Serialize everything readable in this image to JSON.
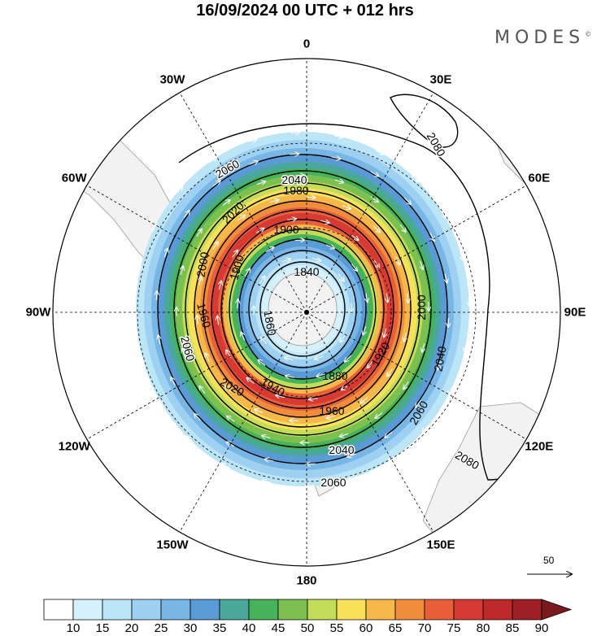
{
  "title": "16/09/2024  00 UTC  + 012 hrs",
  "brand": "MODES",
  "brand_mark": "©",
  "longitude_labels": [
    {
      "text": "0",
      "lon": 0
    },
    {
      "text": "30E",
      "lon": 30
    },
    {
      "text": "60E",
      "lon": 60
    },
    {
      "text": "90E",
      "lon": 90
    },
    {
      "text": "120E",
      "lon": 120
    },
    {
      "text": "150E",
      "lon": 150
    },
    {
      "text": "180",
      "lon": 180
    },
    {
      "text": "150W",
      "lon": -150
    },
    {
      "text": "120W",
      "lon": -120
    },
    {
      "text": "90W",
      "lon": -90
    },
    {
      "text": "60W",
      "lon": -60
    },
    {
      "text": "30W",
      "lon": -30
    }
  ],
  "contour_labels": [
    "2060",
    "2040",
    "1980",
    "1900",
    "2000",
    "2020",
    "1840",
    "1860",
    "1880",
    "1920",
    "1940",
    "1960",
    "2080"
  ],
  "wind_scale_label": "50",
  "colorbar": {
    "ticks": [
      "10",
      "15",
      "20",
      "25",
      "30",
      "35",
      "40",
      "45",
      "50",
      "55",
      "60",
      "65",
      "70",
      "75",
      "80",
      "85",
      "90"
    ],
    "colors": [
      "#ffffff",
      "#d6f1fb",
      "#bde5f8",
      "#9dd0f1",
      "#78b6e5",
      "#5b9bd5",
      "#4aa89a",
      "#46b35a",
      "#7cc04f",
      "#c3dc5a",
      "#f7e15a",
      "#f6b84a",
      "#f08d3c",
      "#e8603a",
      "#d63a33",
      "#bd2a2c",
      "#9e1f26",
      "#7a1a1c"
    ]
  },
  "colors": {
    "land": "#f2f2f2",
    "coast": "#9a9a9a",
    "grid": "#000000",
    "wind_arrows": "#ffffff"
  }
}
